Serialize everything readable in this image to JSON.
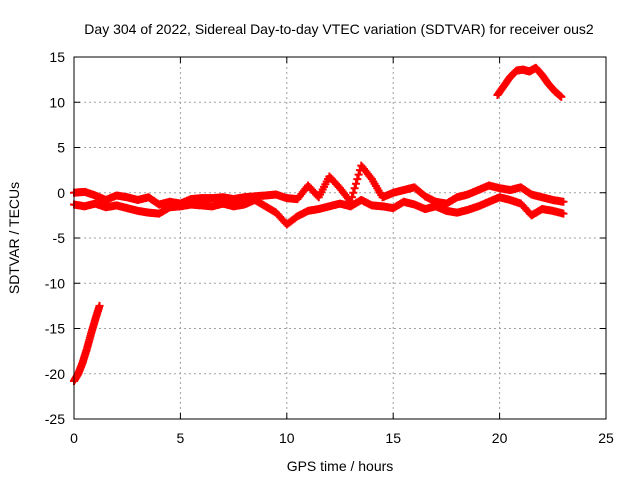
{
  "chart_data": {
    "type": "scatter",
    "title": "Day 304 of 2022, Sidereal Day-to-day VTEC variation (SDTVAR) for receiver ous2",
    "xlabel": "GPS time / hours",
    "ylabel": "SDTVAR / TECUs",
    "xlim": [
      0,
      25
    ],
    "ylim": [
      -25,
      15
    ],
    "xticks": [
      0,
      5,
      10,
      15,
      20,
      25
    ],
    "yticks": [
      -25,
      -20,
      -15,
      -10,
      -5,
      0,
      5,
      10,
      15
    ],
    "grid": true,
    "marker": "plus",
    "color": "#ff0000",
    "series": [
      {
        "name": "early-descending",
        "x": [
          0.0,
          0.2,
          0.4,
          0.6,
          0.8,
          1.0,
          1.2
        ],
        "y": [
          -20.8,
          -20.0,
          -18.8,
          -17.3,
          -15.6,
          -14.0,
          -12.5
        ]
      },
      {
        "name": "main-upper",
        "x": [
          0,
          0.5,
          1,
          1.5,
          2,
          2.5,
          3,
          3.5,
          4,
          4.5,
          5,
          5.5,
          6,
          6.5,
          7,
          7.5,
          8,
          8.5,
          9,
          9.5,
          10,
          10.5,
          11,
          11.5,
          12,
          12.5,
          13,
          13.5,
          14,
          14.5,
          15,
          15.5,
          16,
          16.5,
          17,
          17.5,
          18,
          18.5,
          19,
          19.5,
          20,
          20.5,
          21,
          21.5,
          22,
          22.5,
          23
        ],
        "y": [
          0.0,
          0.1,
          -0.3,
          -0.8,
          -0.3,
          -0.5,
          -0.8,
          -0.5,
          -1.3,
          -1.0,
          -1.2,
          -0.7,
          -0.6,
          -0.6,
          -0.5,
          -0.7,
          -0.5,
          -0.4,
          -0.3,
          -0.2,
          -0.6,
          -0.7,
          0.8,
          -0.5,
          1.8,
          0.5,
          -1.0,
          3.0,
          1.5,
          -0.5,
          0.0,
          0.3,
          0.6,
          -0.4,
          -1.0,
          -1.2,
          -0.5,
          -0.2,
          0.3,
          0.8,
          0.5,
          0.3,
          0.6,
          -0.2,
          -0.5,
          -0.8,
          -1.0
        ]
      },
      {
        "name": "main-lower",
        "x": [
          0,
          0.5,
          1,
          1.5,
          2,
          2.5,
          3,
          3.5,
          4,
          4.5,
          5,
          5.5,
          6,
          6.5,
          7,
          7.5,
          8,
          8.5,
          9,
          9.5,
          10,
          10.5,
          11,
          11.5,
          12,
          12.5,
          13,
          13.5,
          14,
          14.5,
          15,
          15.5,
          16,
          16.5,
          17,
          17.5,
          18,
          18.5,
          19,
          19.5,
          20,
          20.5,
          21,
          21.5,
          22,
          22.5,
          23
        ],
        "y": [
          -1.3,
          -1.5,
          -1.2,
          -1.6,
          -1.4,
          -1.7,
          -2.0,
          -2.2,
          -2.3,
          -1.6,
          -1.5,
          -1.3,
          -1.4,
          -1.5,
          -1.2,
          -1.5,
          -1.3,
          -0.8,
          -1.5,
          -2.2,
          -3.5,
          -2.6,
          -2.0,
          -1.8,
          -1.5,
          -1.2,
          -1.5,
          -0.8,
          -1.4,
          -1.5,
          -1.7,
          -1.0,
          -1.3,
          -1.8,
          -1.5,
          -2.0,
          -2.2,
          -1.9,
          -1.5,
          -1.0,
          -0.5,
          -0.8,
          -1.2,
          -2.5,
          -1.8,
          -2.0,
          -2.3
        ]
      },
      {
        "name": "late-arc",
        "x": [
          19.9,
          20.2,
          20.5,
          20.8,
          21.1,
          21.4,
          21.7,
          22.0,
          22.3,
          22.6,
          22.9
        ],
        "y": [
          10.8,
          11.8,
          12.8,
          13.5,
          13.6,
          13.4,
          13.8,
          13.0,
          12.0,
          11.2,
          10.6
        ]
      }
    ]
  }
}
